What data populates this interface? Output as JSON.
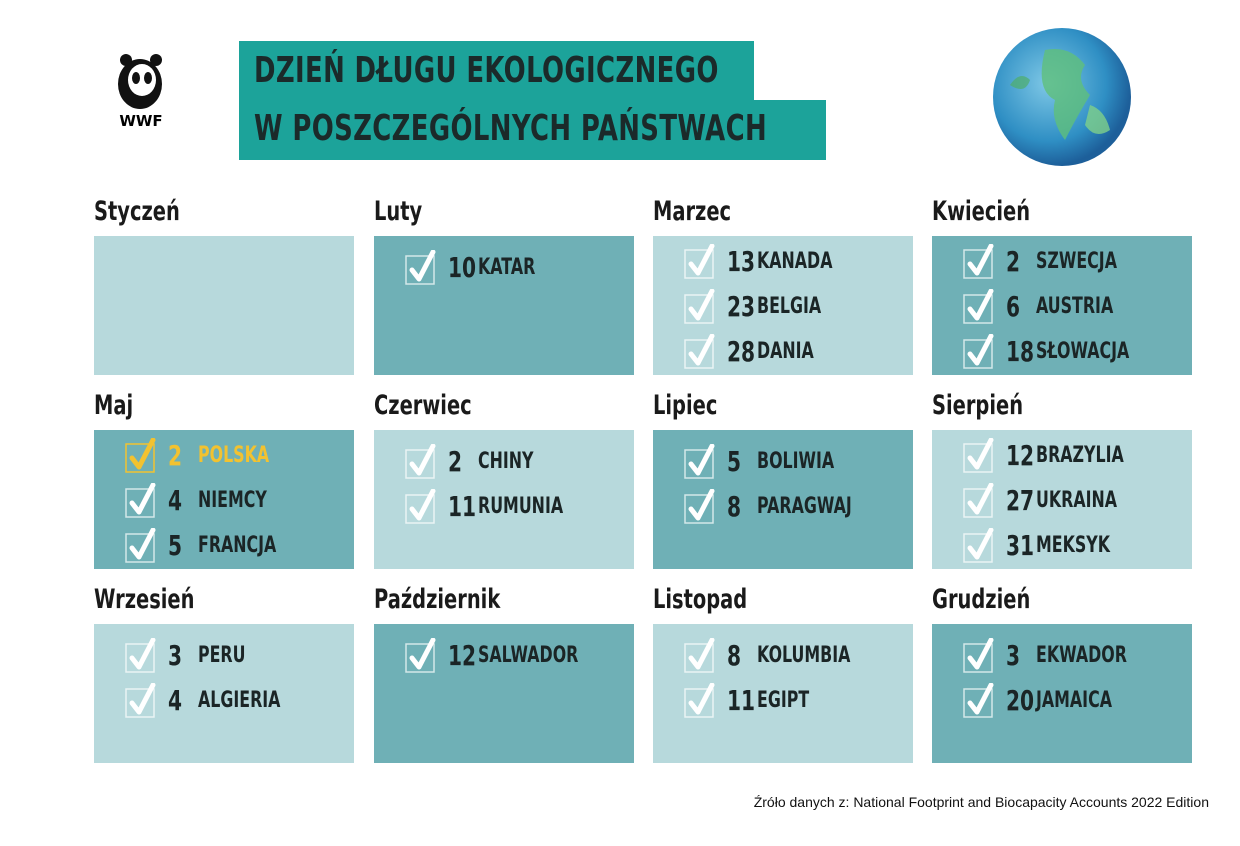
{
  "header": {
    "logo": "WWF",
    "title_lines": [
      "DZIEŃ DŁUGU EKOLOGICZNEGO",
      "W POSZCZEGÓLNYCH PAŃSTWACH"
    ]
  },
  "months": [
    {
      "name": "Styczeń",
      "color": "#b7d9dc",
      "entries": []
    },
    {
      "name": "Luty",
      "color": "#6fb0b6",
      "entries": [
        {
          "day": "10",
          "country": "KATAR"
        }
      ]
    },
    {
      "name": "Marzec",
      "color": "#b7d9dc",
      "entries": [
        {
          "day": "13",
          "country": "KANADA"
        },
        {
          "day": "23",
          "country": "BELGIA"
        },
        {
          "day": "28",
          "country": "DANIA"
        }
      ]
    },
    {
      "name": "Kwiecień",
      "color": "#6fb0b6",
      "entries": [
        {
          "day": "2",
          "country": "SZWECJA"
        },
        {
          "day": "6",
          "country": "AUSTRIA"
        },
        {
          "day": "18",
          "country": "SŁOWACJA"
        }
      ]
    },
    {
      "name": "Maj",
      "color": "#6fb0b6",
      "entries": [
        {
          "day": "2",
          "country": "POLSKA",
          "highlight": true
        },
        {
          "day": "4",
          "country": "NIEMCY"
        },
        {
          "day": "5",
          "country": "FRANCJA"
        }
      ]
    },
    {
      "name": "Czerwiec",
      "color": "#b7d9dc",
      "entries": [
        {
          "day": "2",
          "country": "CHINY"
        },
        {
          "day": "11",
          "country": "RUMUNIA"
        }
      ]
    },
    {
      "name": "Lipiec",
      "color": "#6fb0b6",
      "entries": [
        {
          "day": "5",
          "country": "BOLIWIA"
        },
        {
          "day": "8",
          "country": "PARAGWAJ"
        }
      ]
    },
    {
      "name": "Sierpień",
      "color": "#b7d9dc",
      "entries": [
        {
          "day": "12",
          "country": "BRAZYLIA"
        },
        {
          "day": "27",
          "country": "UKRAINA"
        },
        {
          "day": "31",
          "country": "MEKSYK"
        }
      ]
    },
    {
      "name": "Wrzesień",
      "color": "#b7d9dc",
      "entries": [
        {
          "day": "3",
          "country": "PERU"
        },
        {
          "day": "4",
          "country": "ALGIERIA"
        }
      ]
    },
    {
      "name": "Październik",
      "color": "#6fb0b6",
      "entries": [
        {
          "day": "12",
          "country": "SALWADOR"
        }
      ]
    },
    {
      "name": "Listopad",
      "color": "#b7d9dc",
      "entries": [
        {
          "day": "8",
          "country": "KOLUMBIA"
        },
        {
          "day": "11",
          "country": "EGIPT"
        }
      ]
    },
    {
      "name": "Grudzień",
      "color": "#6fb0b6",
      "entries": [
        {
          "day": "3",
          "country": "EKWADOR"
        },
        {
          "day": "20",
          "country": "JAMAICA"
        }
      ]
    }
  ],
  "source": "Źróło danych z: National Footprint and Biocapacity Accounts 2022 Edition"
}
